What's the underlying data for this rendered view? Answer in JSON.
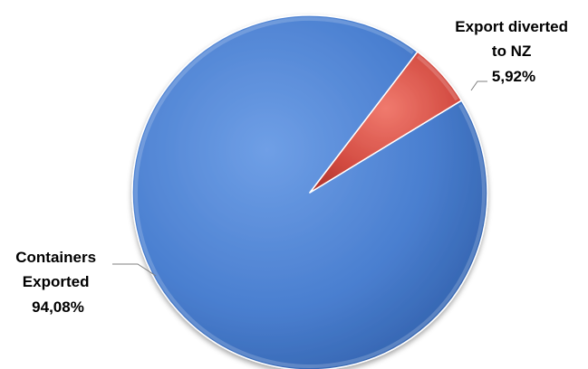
{
  "chart_data": {
    "type": "pie",
    "title": "",
    "categories": [
      "Containers Exported",
      "Export diverted to NZ"
    ],
    "values": [
      94.08,
      5.92
    ],
    "slices": [
      {
        "label_lines": [
          "Containers",
          "Exported"
        ],
        "value": 94.08,
        "value_label": "94,08%",
        "color": "#4a7fd0"
      },
      {
        "label_lines": [
          "Export diverted",
          "to NZ"
        ],
        "value": 5.92,
        "value_label": "5,92%",
        "color": "#d24a40"
      }
    ],
    "legend": "none",
    "data_labels": "outside-with-leader-lines",
    "style": "3d-shaded",
    "grid": false
  }
}
